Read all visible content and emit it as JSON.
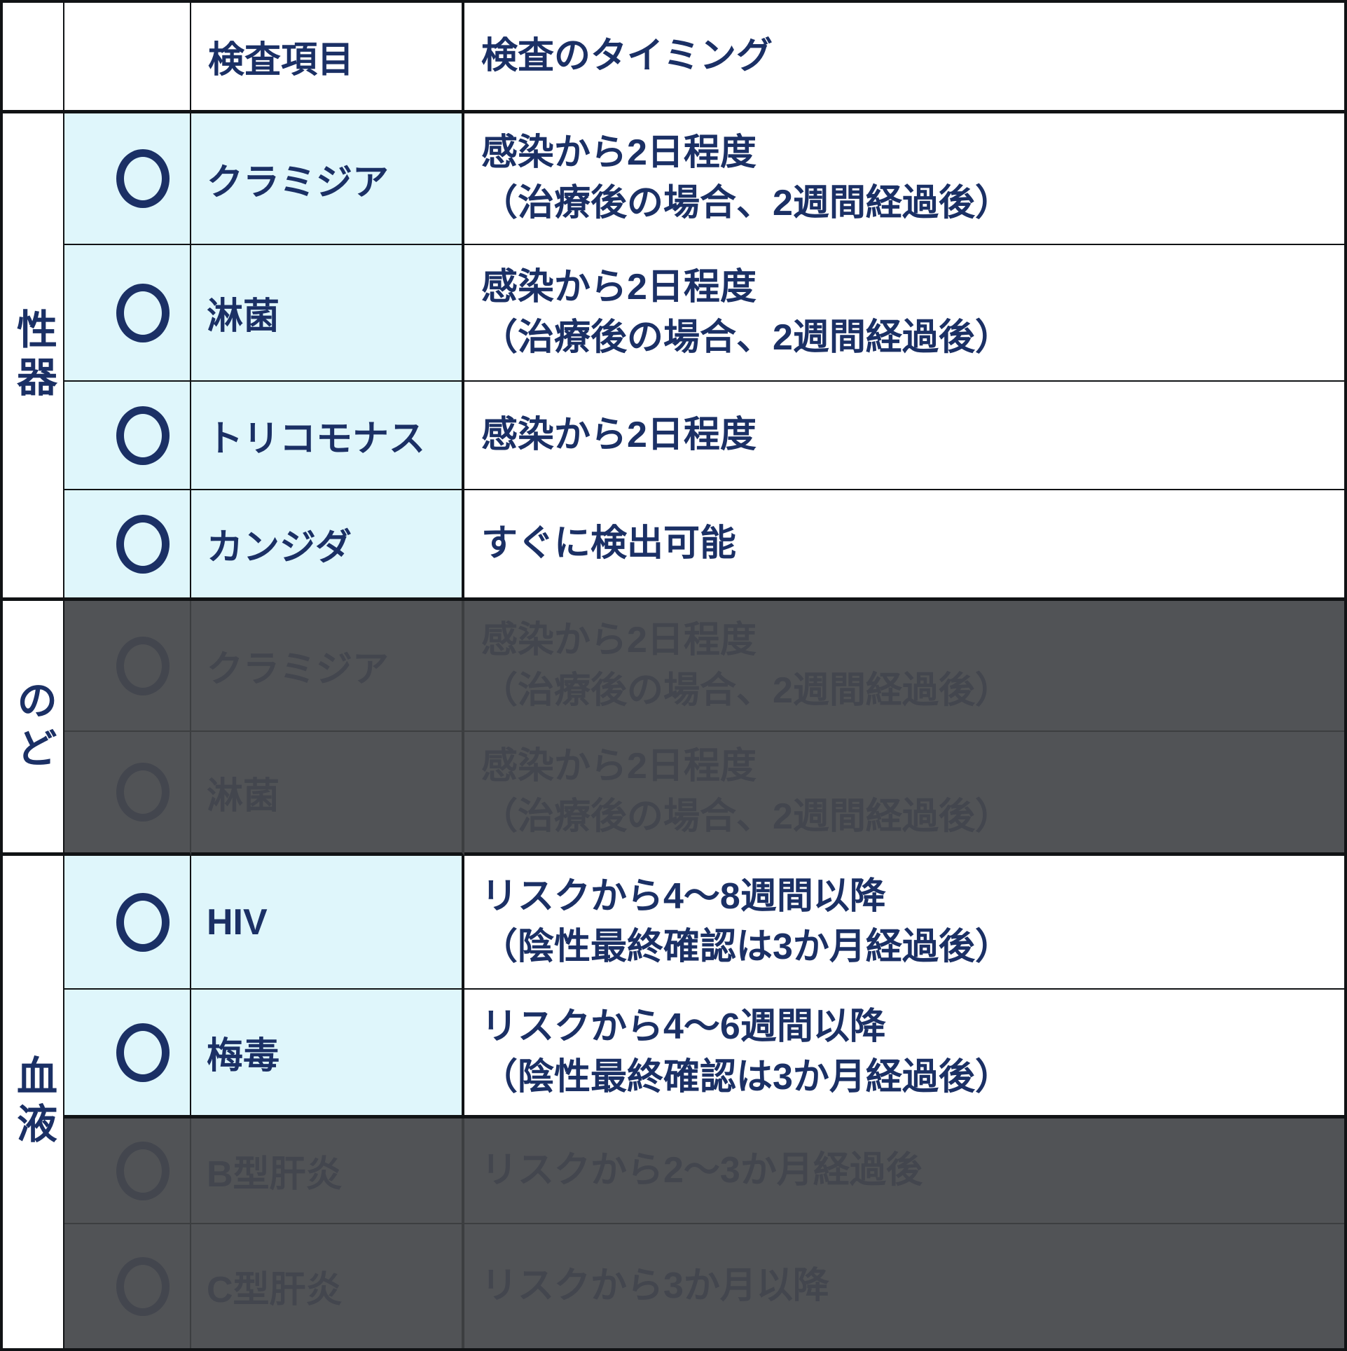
{
  "table": {
    "header": {
      "item_col": "検査項目",
      "timing_col": "検査のタイミング"
    },
    "groups": [
      {
        "label": "性器",
        "rows": [
          {
            "mark": "〇",
            "item": "クラミジア",
            "timing": "感染から2日程度\n（治療後の場合、2週間経過後）",
            "dimmed": false
          },
          {
            "mark": "〇",
            "item": "淋菌",
            "timing": "感染から2日程度\n（治療後の場合、2週間経過後）",
            "dimmed": false
          },
          {
            "mark": "〇",
            "item": "トリコモナス",
            "timing": "感染から2日程度",
            "dimmed": false
          },
          {
            "mark": "〇",
            "item": "カンジダ",
            "timing": "すぐに検出可能",
            "dimmed": false
          }
        ]
      },
      {
        "label": "のど",
        "rows": [
          {
            "mark": "〇",
            "item": "クラミジア",
            "timing": "感染から2日程度\n（治療後の場合、2週間経過後）",
            "dimmed": true
          },
          {
            "mark": "〇",
            "item": "淋菌",
            "timing": "感染から2日程度\n（治療後の場合、2週間経過後）",
            "dimmed": true
          }
        ]
      },
      {
        "label": "血液",
        "rows": [
          {
            "mark": "〇",
            "item": "HIV",
            "timing": "リスクから4～8週間以降\n（陰性最終確認は3か月経過後）",
            "dimmed": false
          },
          {
            "mark": "〇",
            "item": "梅毒",
            "timing": "リスクから4～6週間以降\n（陰性最終確認は3か月経過後）",
            "dimmed": false
          },
          {
            "mark": "〇",
            "item": "B型肝炎",
            "timing": "リスクから2～3か月経過後",
            "dimmed": true
          },
          {
            "mark": "〇",
            "item": "C型肝炎",
            "timing": "リスクから3か月以降",
            "dimmed": true
          }
        ]
      }
    ]
  },
  "colors": {
    "text_navy": "#1b3065",
    "highlight_cyan": "#dff6fb",
    "overlay_gray": "#515356",
    "dimmed_text": "#43464e",
    "border_black": "#111315"
  }
}
